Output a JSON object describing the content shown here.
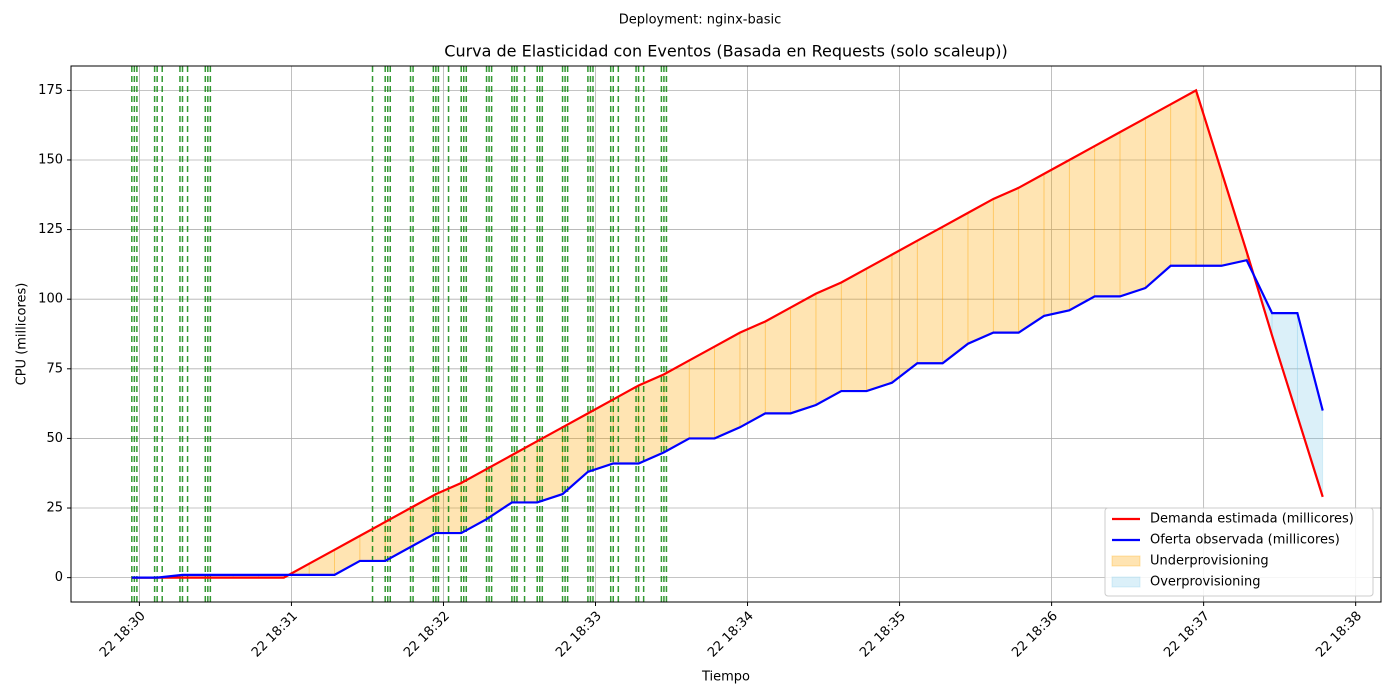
{
  "chart_data": {
    "type": "line",
    "suptitle": "Deployment: nginx-basic",
    "title": "Curva de Elasticidad con Eventos (Basada en Requests (solo scaleup))",
    "xlabel": "Tiempo",
    "ylabel": "CPU (millicores)",
    "x": [
      "22 18:29:57",
      "22 18:30:07",
      "22 18:30:17",
      "22 18:30:27",
      "22 18:30:37",
      "22 18:30:47",
      "22 18:30:57",
      "22 18:31:07",
      "22 18:31:17",
      "22 18:31:27",
      "22 18:31:37",
      "22 18:31:47",
      "22 18:31:57",
      "22 18:32:07",
      "22 18:32:17",
      "22 18:32:27",
      "22 18:32:37",
      "22 18:32:47",
      "22 18:32:57",
      "22 18:33:07",
      "22 18:33:17",
      "22 18:33:27",
      "22 18:33:37",
      "22 18:33:47",
      "22 18:33:57",
      "22 18:34:07",
      "22 18:34:17",
      "22 18:34:27",
      "22 18:34:37",
      "22 18:34:47",
      "22 18:34:57",
      "22 18:35:07",
      "22 18:35:17",
      "22 18:35:27",
      "22 18:35:37",
      "22 18:35:47",
      "22 18:35:57",
      "22 18:36:07",
      "22 18:36:17",
      "22 18:36:27",
      "22 18:36:37",
      "22 18:36:47",
      "22 18:36:57",
      "22 18:37:07",
      "22 18:37:17",
      "22 18:37:27",
      "22 18:37:37",
      "22 18:37:47"
    ],
    "series": [
      {
        "name": "Demanda estimada (millicores)",
        "color": "#ff0000",
        "values": [
          0,
          0,
          0,
          0,
          0,
          0,
          0,
          5,
          10,
          15,
          20,
          25,
          30,
          34,
          39,
          44,
          49,
          54,
          59,
          64,
          69,
          73,
          78,
          83,
          88,
          92,
          97,
          102,
          106,
          111,
          116,
          121,
          126,
          131,
          136,
          140,
          145,
          150,
          155,
          160,
          165,
          170,
          175,
          146,
          117,
          87,
          58,
          29
        ]
      },
      {
        "name": "Oferta observada (millicores)",
        "color": "#0000ff",
        "values": [
          0,
          0,
          1,
          1,
          1,
          1,
          1,
          1,
          1,
          6,
          6,
          11,
          16,
          16,
          21,
          27,
          27,
          30,
          38,
          41,
          41,
          45,
          50,
          50,
          54,
          59,
          59,
          62,
          67,
          67,
          70,
          77,
          77,
          84,
          88,
          88,
          94,
          96,
          101,
          101,
          104,
          112,
          112,
          112,
          114,
          95,
          95,
          60
        ]
      }
    ],
    "fills": [
      {
        "name": "Underprovisioning",
        "color": "#ffa500"
      },
      {
        "name": "Overprovisioning",
        "color": "#87ceeb"
      }
    ],
    "events": [
      "22 18:29:57",
      "22 18:29:58",
      "22 18:29:59",
      "22 18:30:06",
      "22 18:30:07",
      "22 18:30:09",
      "22 18:30:16",
      "22 18:30:17",
      "22 18:30:19",
      "22 18:30:26",
      "22 18:30:27",
      "22 18:30:28",
      "22 18:31:32",
      "22 18:31:37",
      "22 18:31:38",
      "22 18:31:39",
      "22 18:31:47",
      "22 18:31:48",
      "22 18:31:56",
      "22 18:31:57",
      "22 18:31:58",
      "22 18:32:02",
      "22 18:32:07",
      "22 18:32:08",
      "22 18:32:09",
      "22 18:32:17",
      "22 18:32:18",
      "22 18:32:19",
      "22 18:32:27",
      "22 18:32:28",
      "22 18:32:29",
      "22 18:32:32",
      "22 18:32:37",
      "22 18:32:38",
      "22 18:32:39",
      "22 18:32:47",
      "22 18:32:48",
      "22 18:32:49",
      "22 18:32:57",
      "22 18:32:58",
      "22 18:32:59",
      "22 18:33:06",
      "22 18:33:07",
      "22 18:33:09",
      "22 18:33:16",
      "22 18:33:17",
      "22 18:33:19",
      "22 18:33:26",
      "22 18:33:27",
      "22 18:33:28"
    ],
    "event_color": "#008000",
    "xlim": [
      "22 18:29:33",
      "22 18:38:10"
    ],
    "xticks": [
      "22 18:30",
      "22 18:31",
      "22 18:32",
      "22 18:33",
      "22 18:34",
      "22 18:35",
      "22 18:36",
      "22 18:37",
      "22 18:38"
    ],
    "ylim": [
      -8.75,
      183.75
    ],
    "yticks": [
      0,
      25,
      50,
      75,
      100,
      125,
      150,
      175
    ],
    "grid": true,
    "legend": "lower right"
  }
}
